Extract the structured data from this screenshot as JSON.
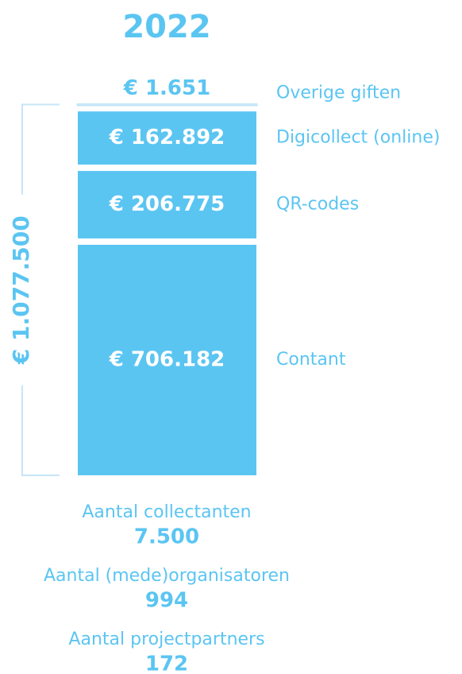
{
  "chart_data": {
    "type": "bar",
    "title": "2022",
    "categories": [
      "Contant",
      "QR-codes",
      "Digicollect (online)",
      "Overige giften"
    ],
    "values": [
      706182,
      206775,
      162892,
      1651
    ],
    "value_labels": [
      "€ 706.182",
      "€ 206.775",
      "€ 162.892",
      "€ 1.651"
    ],
    "color": "#5bc5f2",
    "total": {
      "value": 1077500,
      "label": "€ 1.077.500"
    },
    "stats": [
      {
        "label": "Aantal collectanten",
        "value": "7.500"
      },
      {
        "label": "Aantal (mede)organisatoren",
        "value": "994"
      },
      {
        "label": "Aantal projectpartners",
        "value": "172"
      }
    ]
  }
}
